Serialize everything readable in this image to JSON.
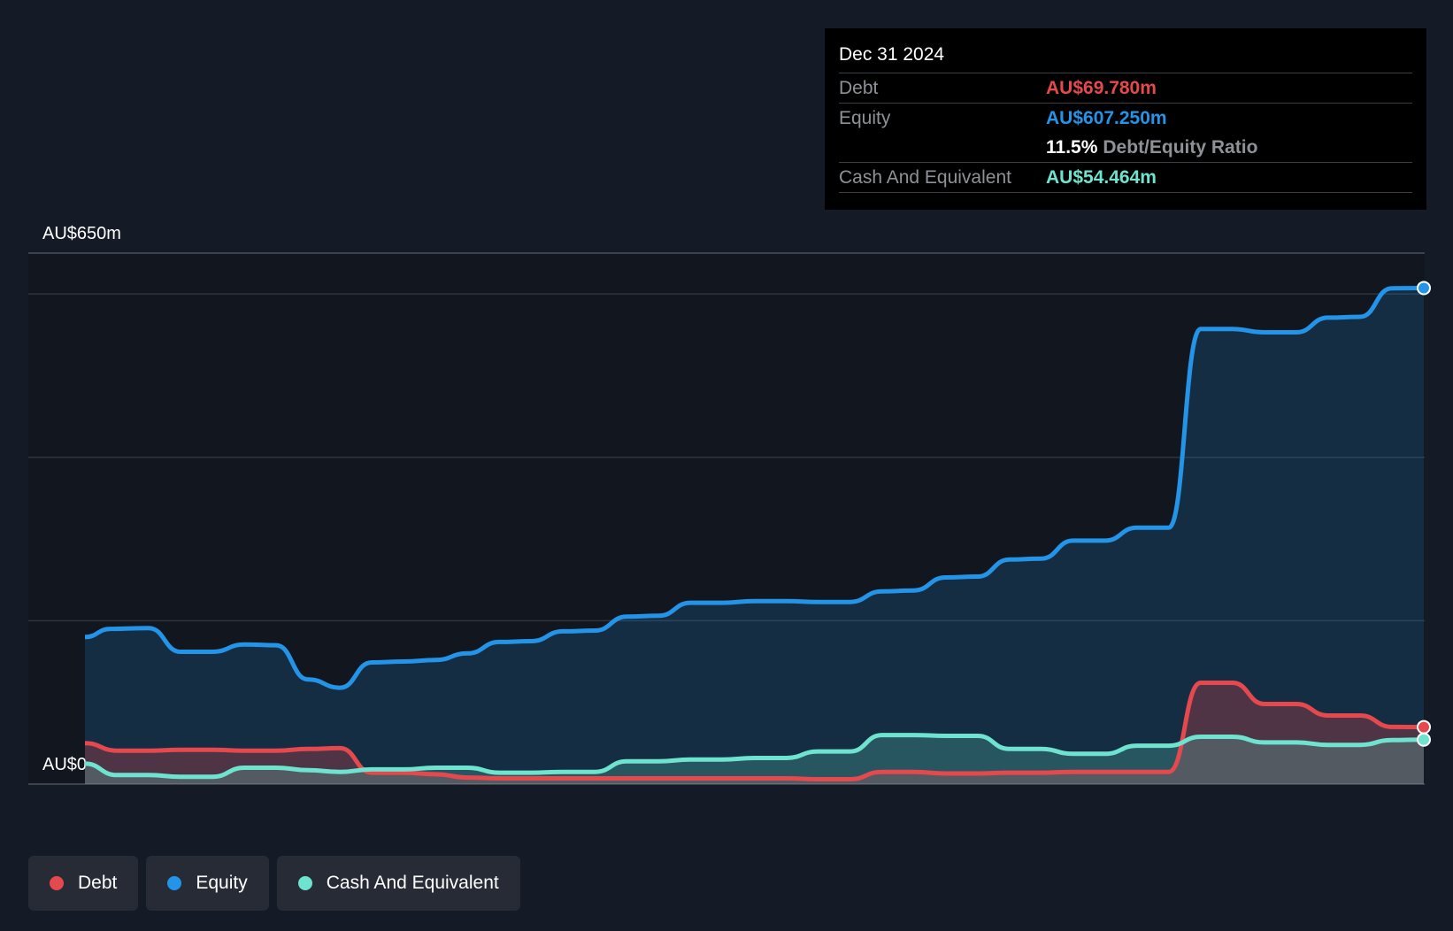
{
  "tooltip": {
    "date": "Dec 31 2024",
    "debt_label": "Debt",
    "debt_value": "AU$69.780m",
    "equity_label": "Equity",
    "equity_value": "AU$607.250m",
    "ratio_value": "11.5%",
    "ratio_label": "Debt/Equity Ratio",
    "cash_label": "Cash And Equivalent",
    "cash_value": "AU$54.464m"
  },
  "legend": [
    {
      "label": "Debt",
      "color": "#e5484d"
    },
    {
      "label": "Equity",
      "color": "#2394e8"
    },
    {
      "label": "Cash And Equivalent",
      "color": "#6ee3cf"
    }
  ],
  "colors": {
    "debt": "#e5484d",
    "equity": "#2394e8",
    "cash": "#6ee3cf",
    "background": "#151b26",
    "plot_background": "#12161e",
    "grid": "#2e3440"
  },
  "chart_data": {
    "type": "line",
    "title": "",
    "xlabel": "",
    "ylabel": "",
    "y_top_label": "AU$650m",
    "y_bottom_label": "AU$0",
    "ylim": [
      0,
      650
    ],
    "xlim": [
      2014.5,
      2025.0
    ],
    "xticks": [
      "2015",
      "2016",
      "2017",
      "2018",
      "2019",
      "2020",
      "2021",
      "2022",
      "2023",
      "2024"
    ],
    "grid": true,
    "legend_position": "bottom-left",
    "area_fill": true,
    "series": [
      {
        "name": "Equity",
        "color": "#2394e8",
        "points": [
          [
            2014.5,
            180
          ],
          [
            2014.7,
            190
          ],
          [
            2015.0,
            191
          ],
          [
            2015.25,
            162
          ],
          [
            2015.5,
            162
          ],
          [
            2015.75,
            171
          ],
          [
            2016.0,
            170
          ],
          [
            2016.25,
            128
          ],
          [
            2016.5,
            118
          ],
          [
            2016.75,
            149
          ],
          [
            2017.0,
            150
          ],
          [
            2017.25,
            152
          ],
          [
            2017.5,
            160
          ],
          [
            2017.75,
            174
          ],
          [
            2018.0,
            175
          ],
          [
            2018.25,
            187
          ],
          [
            2018.5,
            188
          ],
          [
            2018.75,
            205
          ],
          [
            2019.0,
            206
          ],
          [
            2019.25,
            222
          ],
          [
            2019.5,
            222
          ],
          [
            2019.75,
            224
          ],
          [
            2020.0,
            224
          ],
          [
            2020.25,
            223
          ],
          [
            2020.5,
            223
          ],
          [
            2020.75,
            236
          ],
          [
            2021.0,
            237
          ],
          [
            2021.25,
            253
          ],
          [
            2021.5,
            254
          ],
          [
            2021.75,
            275
          ],
          [
            2022.0,
            276
          ],
          [
            2022.25,
            298
          ],
          [
            2022.5,
            298
          ],
          [
            2022.75,
            314
          ],
          [
            2023.0,
            314
          ],
          [
            2023.25,
            557
          ],
          [
            2023.5,
            557
          ],
          [
            2023.75,
            553
          ],
          [
            2024.0,
            553
          ],
          [
            2024.25,
            571
          ],
          [
            2024.5,
            572
          ],
          [
            2024.75,
            607
          ],
          [
            2025.0,
            607.25
          ]
        ]
      },
      {
        "name": "Debt",
        "color": "#e5484d",
        "points": [
          [
            2014.5,
            50
          ],
          [
            2014.75,
            41
          ],
          [
            2015.0,
            41
          ],
          [
            2015.25,
            42
          ],
          [
            2015.5,
            42
          ],
          [
            2015.75,
            41
          ],
          [
            2016.0,
            41
          ],
          [
            2016.25,
            43
          ],
          [
            2016.5,
            44
          ],
          [
            2016.75,
            14
          ],
          [
            2017.0,
            14
          ],
          [
            2017.25,
            12
          ],
          [
            2017.5,
            8
          ],
          [
            2017.75,
            7
          ],
          [
            2018.0,
            7
          ],
          [
            2018.25,
            7
          ],
          [
            2018.5,
            7
          ],
          [
            2018.75,
            7
          ],
          [
            2019.0,
            7
          ],
          [
            2019.25,
            7
          ],
          [
            2019.5,
            7
          ],
          [
            2019.75,
            7
          ],
          [
            2020.0,
            7
          ],
          [
            2020.25,
            6
          ],
          [
            2020.5,
            6
          ],
          [
            2020.75,
            15
          ],
          [
            2021.0,
            15
          ],
          [
            2021.25,
            13
          ],
          [
            2021.5,
            13
          ],
          [
            2021.75,
            14
          ],
          [
            2022.0,
            14
          ],
          [
            2022.25,
            15
          ],
          [
            2022.5,
            15
          ],
          [
            2022.75,
            15
          ],
          [
            2023.0,
            15
          ],
          [
            2023.25,
            124
          ],
          [
            2023.5,
            124
          ],
          [
            2023.75,
            98
          ],
          [
            2024.0,
            98
          ],
          [
            2024.25,
            84
          ],
          [
            2024.5,
            84
          ],
          [
            2024.75,
            70
          ],
          [
            2025.0,
            69.78
          ]
        ]
      },
      {
        "name": "Cash And Equivalent",
        "color": "#6ee3cf",
        "points": [
          [
            2014.5,
            25
          ],
          [
            2014.75,
            11
          ],
          [
            2015.0,
            11
          ],
          [
            2015.25,
            9
          ],
          [
            2015.5,
            9
          ],
          [
            2015.75,
            20
          ],
          [
            2016.0,
            20
          ],
          [
            2016.25,
            17
          ],
          [
            2016.5,
            15
          ],
          [
            2016.75,
            18
          ],
          [
            2017.0,
            18
          ],
          [
            2017.25,
            20
          ],
          [
            2017.5,
            20
          ],
          [
            2017.75,
            14
          ],
          [
            2018.0,
            14
          ],
          [
            2018.25,
            15
          ],
          [
            2018.5,
            15
          ],
          [
            2018.75,
            28
          ],
          [
            2019.0,
            28
          ],
          [
            2019.25,
            30
          ],
          [
            2019.5,
            30
          ],
          [
            2019.75,
            32
          ],
          [
            2020.0,
            32
          ],
          [
            2020.25,
            40
          ],
          [
            2020.5,
            40
          ],
          [
            2020.75,
            60
          ],
          [
            2021.0,
            60
          ],
          [
            2021.25,
            59
          ],
          [
            2021.5,
            59
          ],
          [
            2021.75,
            43
          ],
          [
            2022.0,
            43
          ],
          [
            2022.25,
            37
          ],
          [
            2022.5,
            37
          ],
          [
            2022.75,
            47
          ],
          [
            2023.0,
            47
          ],
          [
            2023.25,
            58
          ],
          [
            2023.5,
            58
          ],
          [
            2023.75,
            51
          ],
          [
            2024.0,
            51
          ],
          [
            2024.25,
            48
          ],
          [
            2024.5,
            48
          ],
          [
            2024.75,
            54
          ],
          [
            2025.0,
            54.464
          ]
        ]
      }
    ]
  }
}
